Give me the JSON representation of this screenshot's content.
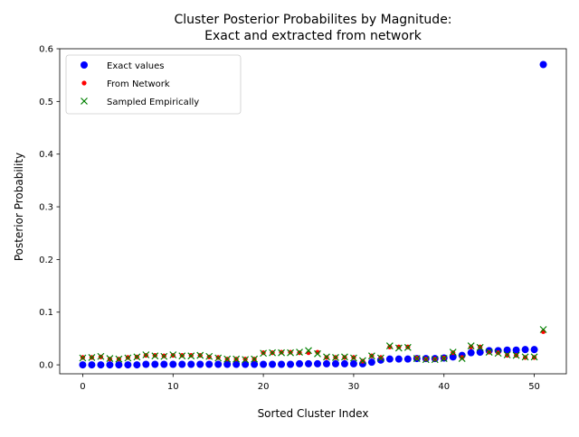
{
  "chart_data": {
    "type": "scatter",
    "title_lines": [
      "Cluster Posterior Probabilites by Magnitude:",
      "Exact and extracted from network"
    ],
    "xlabel": "Sorted Cluster Index",
    "ylabel": "Posterior Probability",
    "xlim": [
      -2.55,
      53.55
    ],
    "ylim": [
      -0.017,
      0.6
    ],
    "xticks": [
      0,
      10,
      20,
      30,
      40,
      50
    ],
    "yticks": [
      0.0,
      0.1,
      0.2,
      0.3,
      0.4,
      0.5,
      0.6
    ],
    "ytick_labels": [
      "0.0",
      "0.1",
      "0.2",
      "0.3",
      "0.4",
      "0.5",
      "0.6"
    ],
    "grid": false,
    "legend_position": "upper-left",
    "series": [
      {
        "name": "Exact values",
        "marker": "circle",
        "color": "#0000ff",
        "x": [
          0,
          1,
          2,
          3,
          4,
          5,
          6,
          7,
          8,
          9,
          10,
          11,
          12,
          13,
          14,
          15,
          16,
          17,
          18,
          19,
          20,
          21,
          22,
          23,
          24,
          25,
          26,
          27,
          28,
          29,
          30,
          31,
          32,
          33,
          34,
          35,
          36,
          37,
          38,
          39,
          40,
          41,
          42,
          43,
          44,
          45,
          46,
          47,
          48,
          49,
          50,
          51
        ],
        "y": [
          0.0,
          0.0,
          0.0,
          0.0,
          0.0,
          0.0,
          0.0,
          0.001,
          0.001,
          0.001,
          0.001,
          0.001,
          0.001,
          0.001,
          0.001,
          0.001,
          0.001,
          0.001,
          0.001,
          0.001,
          0.001,
          0.001,
          0.001,
          0.001,
          0.002,
          0.002,
          0.002,
          0.002,
          0.002,
          0.002,
          0.002,
          0.002,
          0.005,
          0.009,
          0.011,
          0.011,
          0.011,
          0.012,
          0.012,
          0.012,
          0.013,
          0.015,
          0.018,
          0.023,
          0.024,
          0.027,
          0.027,
          0.028,
          0.028,
          0.029,
          0.029,
          0.57
        ]
      },
      {
        "name": "From Network",
        "marker": "dot",
        "color": "#ff0000",
        "x": [
          0,
          1,
          2,
          3,
          4,
          5,
          6,
          7,
          8,
          9,
          10,
          11,
          12,
          13,
          14,
          15,
          16,
          17,
          18,
          19,
          20,
          21,
          22,
          23,
          24,
          25,
          26,
          27,
          28,
          29,
          30,
          31,
          32,
          33,
          34,
          35,
          36,
          37,
          38,
          39,
          40,
          41,
          42,
          43,
          44,
          45,
          46,
          47,
          48,
          49,
          50,
          51
        ],
        "y": [
          0.014,
          0.014,
          0.015,
          0.011,
          0.011,
          0.014,
          0.015,
          0.018,
          0.018,
          0.017,
          0.018,
          0.018,
          0.018,
          0.018,
          0.015,
          0.014,
          0.011,
          0.011,
          0.011,
          0.011,
          0.023,
          0.023,
          0.024,
          0.024,
          0.023,
          0.023,
          0.024,
          0.014,
          0.014,
          0.014,
          0.014,
          0.007,
          0.017,
          0.014,
          0.034,
          0.034,
          0.034,
          0.013,
          0.011,
          0.011,
          0.013,
          0.023,
          0.014,
          0.034,
          0.034,
          0.024,
          0.023,
          0.018,
          0.018,
          0.014,
          0.014,
          0.063
        ]
      },
      {
        "name": "Sampled Empirically",
        "marker": "x",
        "color": "#008000",
        "x": [
          0,
          1,
          2,
          3,
          4,
          5,
          6,
          7,
          8,
          9,
          10,
          11,
          12,
          13,
          14,
          15,
          16,
          17,
          18,
          19,
          20,
          21,
          22,
          23,
          24,
          25,
          26,
          27,
          28,
          29,
          30,
          31,
          32,
          33,
          34,
          35,
          36,
          37,
          38,
          39,
          40,
          41,
          42,
          43,
          44,
          45,
          46,
          47,
          48,
          49,
          50,
          51
        ],
        "y": [
          0.013,
          0.014,
          0.016,
          0.012,
          0.011,
          0.013,
          0.015,
          0.019,
          0.017,
          0.016,
          0.019,
          0.017,
          0.017,
          0.018,
          0.016,
          0.013,
          0.011,
          0.011,
          0.01,
          0.011,
          0.022,
          0.023,
          0.023,
          0.023,
          0.024,
          0.027,
          0.021,
          0.015,
          0.014,
          0.015,
          0.013,
          0.008,
          0.017,
          0.013,
          0.036,
          0.032,
          0.033,
          0.012,
          0.01,
          0.01,
          0.012,
          0.024,
          0.012,
          0.036,
          0.033,
          0.024,
          0.022,
          0.019,
          0.018,
          0.015,
          0.015,
          0.067
        ]
      }
    ]
  }
}
